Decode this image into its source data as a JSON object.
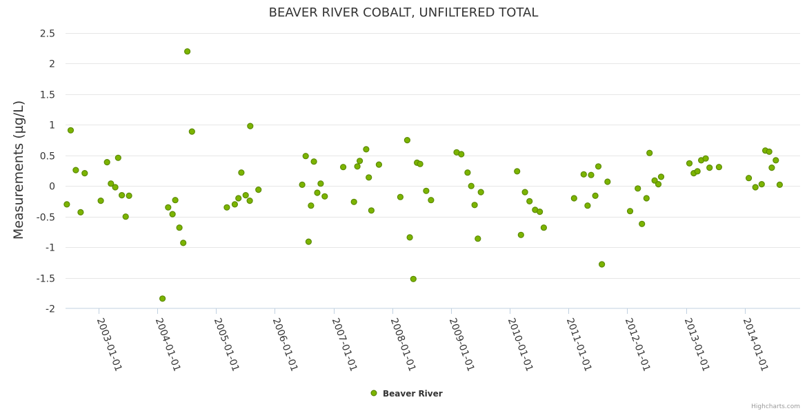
{
  "chart_data": {
    "type": "scatter",
    "title": "BEAVER RIVER COBALT, UNFILTERED TOTAL",
    "ylabel": "Measurements (µg/L)",
    "xlabel": "",
    "ylim": [
      -2,
      2.5
    ],
    "xlim": [
      "2002-06-10",
      "2014-12-10"
    ],
    "yticks": [
      -2,
      -1.5,
      -1,
      -0.5,
      0,
      0.5,
      1,
      1.5,
      2,
      2.5
    ],
    "xticks": [
      "2003-01-01",
      "2004-01-01",
      "2005-01-01",
      "2006-01-01",
      "2007-01-01",
      "2008-01-01",
      "2009-01-01",
      "2010-01-01",
      "2011-01-01",
      "2012-01-01",
      "2013-01-01",
      "2014-01-01"
    ],
    "grid": true,
    "legend_position": "bottom-center",
    "credits": "Highcharts.com",
    "series": [
      {
        "name": "Beaver River",
        "color": "#7cb400",
        "stroke": "#5a8a00",
        "points": [
          [
            "2002-06-18",
            -0.3
          ],
          [
            "2002-07-12",
            0.91
          ],
          [
            "2002-08-13",
            0.26
          ],
          [
            "2002-09-12",
            -0.43
          ],
          [
            "2002-10-07",
            0.21
          ],
          [
            "2003-01-15",
            -0.24
          ],
          [
            "2003-02-23",
            0.39
          ],
          [
            "2003-03-19",
            0.04
          ],
          [
            "2003-04-15",
            -0.02
          ],
          [
            "2003-05-03",
            0.46
          ],
          [
            "2003-05-26",
            -0.15
          ],
          [
            "2003-06-19",
            -0.5
          ],
          [
            "2003-07-10",
            -0.16
          ],
          [
            "2004-02-03",
            -1.84
          ],
          [
            "2004-03-09",
            -0.35
          ],
          [
            "2004-04-05",
            -0.46
          ],
          [
            "2004-04-22",
            -0.23
          ],
          [
            "2004-05-18",
            -0.68
          ],
          [
            "2004-06-11",
            -0.93
          ],
          [
            "2004-07-06",
            2.2
          ],
          [
            "2004-08-04",
            0.89
          ],
          [
            "2005-03-09",
            -0.35
          ],
          [
            "2005-04-27",
            -0.3
          ],
          [
            "2005-05-20",
            -0.2
          ],
          [
            "2005-06-07",
            0.22
          ],
          [
            "2005-07-04",
            -0.15
          ],
          [
            "2005-08-01",
            0.98
          ],
          [
            "2005-07-29",
            -0.24
          ],
          [
            "2005-09-21",
            -0.06
          ],
          [
            "2006-06-20",
            0.02
          ],
          [
            "2006-07-12",
            0.49
          ],
          [
            "2006-07-30",
            -0.91
          ],
          [
            "2006-08-14",
            -0.32
          ],
          [
            "2006-09-01",
            0.4
          ],
          [
            "2006-09-22",
            -0.11
          ],
          [
            "2006-10-13",
            0.04
          ],
          [
            "2006-11-07",
            -0.17
          ],
          [
            "2007-03-02",
            0.31
          ],
          [
            "2007-05-08",
            -0.26
          ],
          [
            "2007-05-29",
            0.32
          ],
          [
            "2007-06-13",
            0.41
          ],
          [
            "2007-07-23",
            0.6
          ],
          [
            "2007-08-08",
            0.14
          ],
          [
            "2007-08-24",
            -0.4
          ],
          [
            "2007-10-10",
            0.35
          ],
          [
            "2008-02-20",
            -0.18
          ],
          [
            "2008-04-03",
            0.75
          ],
          [
            "2008-04-19",
            -0.84
          ],
          [
            "2008-05-11",
            -1.52
          ],
          [
            "2008-06-03",
            0.38
          ],
          [
            "2008-06-22",
            0.36
          ],
          [
            "2008-07-30",
            -0.08
          ],
          [
            "2008-08-29",
            -0.23
          ],
          [
            "2009-02-04",
            0.55
          ],
          [
            "2009-03-05",
            0.52
          ],
          [
            "2009-04-13",
            0.22
          ],
          [
            "2009-05-06",
            0.0
          ],
          [
            "2009-05-27",
            -0.31
          ],
          [
            "2009-06-16",
            -0.86
          ],
          [
            "2009-07-05",
            -0.1
          ],
          [
            "2010-02-15",
            0.24
          ],
          [
            "2010-03-11",
            -0.8
          ],
          [
            "2010-04-05",
            -0.1
          ],
          [
            "2010-05-03",
            -0.25
          ],
          [
            "2010-06-07",
            -0.39
          ],
          [
            "2010-07-06",
            -0.42
          ],
          [
            "2010-07-31",
            -0.68
          ],
          [
            "2011-02-04",
            -0.2
          ],
          [
            "2011-04-05",
            0.19
          ],
          [
            "2011-04-29",
            -0.32
          ],
          [
            "2011-05-21",
            0.18
          ],
          [
            "2011-06-16",
            -0.16
          ],
          [
            "2011-07-05",
            0.32
          ],
          [
            "2011-07-27",
            -1.28
          ],
          [
            "2011-08-31",
            0.07
          ],
          [
            "2012-01-18",
            -0.41
          ],
          [
            "2012-03-06",
            -0.04
          ],
          [
            "2012-04-01",
            -0.62
          ],
          [
            "2012-04-29",
            -0.2
          ],
          [
            "2012-05-18",
            0.54
          ],
          [
            "2012-06-19",
            0.09
          ],
          [
            "2012-07-12",
            0.03
          ],
          [
            "2012-07-29",
            0.15
          ],
          [
            "2013-01-21",
            0.37
          ],
          [
            "2013-02-17",
            0.21
          ],
          [
            "2013-03-12",
            0.24
          ],
          [
            "2013-04-04",
            0.42
          ],
          [
            "2013-05-02",
            0.45
          ],
          [
            "2013-05-26",
            0.3
          ],
          [
            "2013-07-24",
            0.31
          ],
          [
            "2014-01-25",
            0.13
          ],
          [
            "2014-03-07",
            -0.02
          ],
          [
            "2014-04-15",
            0.03
          ],
          [
            "2014-05-08",
            0.58
          ],
          [
            "2014-06-01",
            0.56
          ],
          [
            "2014-06-17",
            0.3
          ],
          [
            "2014-07-12",
            0.42
          ],
          [
            "2014-08-05",
            0.02
          ]
        ]
      }
    ]
  }
}
